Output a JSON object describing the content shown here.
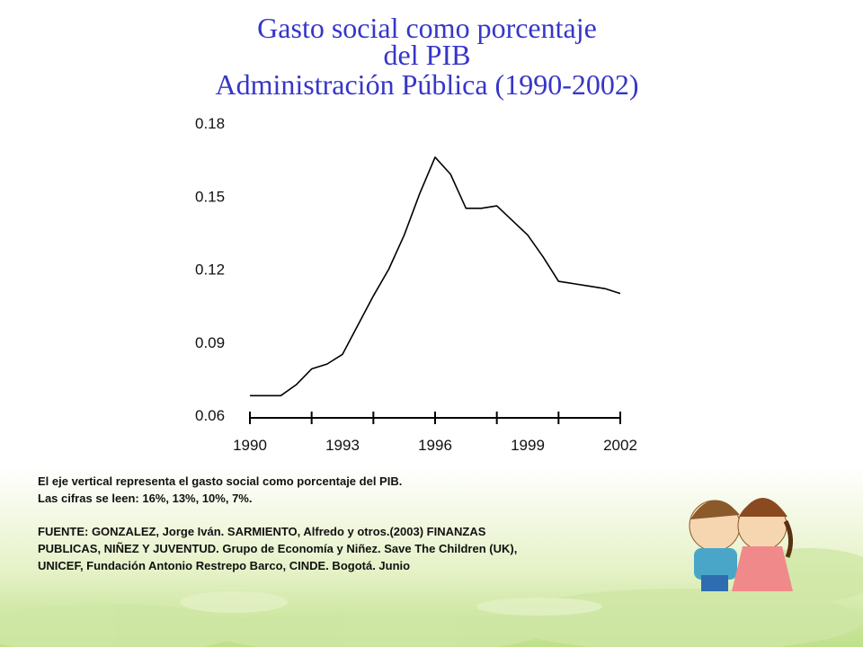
{
  "chart_data": {
    "type": "line",
    "title": [
      "Gasto social como porcentaje",
      "del PIB",
      "Administración Pública (1990-2002)"
    ],
    "x": [
      1990,
      1990.5,
      1991,
      1991.5,
      1992,
      1992.5,
      1993,
      1993.5,
      1994,
      1994.5,
      1995,
      1995.5,
      1996,
      1996.5,
      1997,
      1997.5,
      1998,
      1998.5,
      1999,
      1999.5,
      2000,
      2000.5,
      2001,
      2001.5,
      2002
    ],
    "series": [
      {
        "color": "#000000",
        "values": [
          0.068,
          0.068,
          0.068,
          0.0725,
          0.079,
          0.081,
          0.085,
          0.097,
          0.109,
          0.12,
          0.134,
          0.151,
          0.166,
          0.159,
          0.145,
          0.145,
          0.146,
          0.14,
          0.134,
          0.125,
          0.115,
          0.114,
          0.113,
          0.112,
          0.11
        ]
      }
    ],
    "xlim": [
      1990,
      2002
    ],
    "xticks": [
      1990,
      1993,
      1996,
      1999,
      2002
    ],
    "xtick_marks": [
      1990,
      1992,
      1994,
      1996,
      1998,
      2000,
      2002
    ],
    "ylim": [
      0.06,
      0.18
    ],
    "yticks": [
      0.06,
      0.09,
      0.12,
      0.15,
      0.18
    ],
    "annotations": [
      [
        "El eje vertical representa el gasto social como porcentaje del PIB.",
        "Las cifras se leen: 16%, 13%, 10%, 7%."
      ],
      [
        "FUENTE: GONZALEZ, Jorge Iván. SARMIENTO, Alfredo y otros.(2003) FINANZAS",
        "PUBLICAS, NIÑEZ Y JUVENTUD. Grupo de Economía y Niñez. Save The Children (UK),",
        "UNICEF, Fundación Antonio Restrepo Barco, CINDE. Bogotá. Junio"
      ]
    ]
  }
}
